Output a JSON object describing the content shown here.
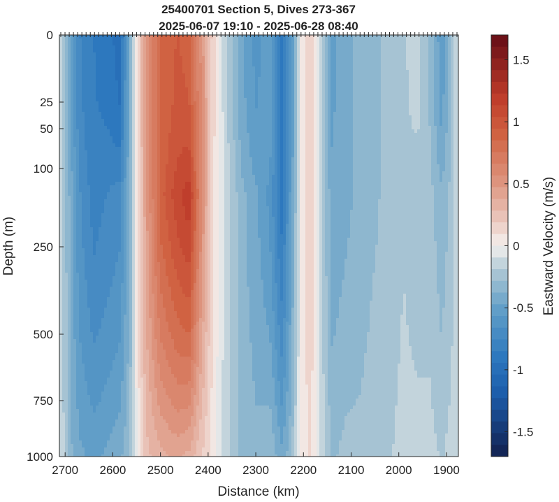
{
  "chart_data": {
    "type": "heatmap",
    "title": "25400701 Section 5, Dives 273-367",
    "subtitle": "2025-06-07 19:10 - 2025-06-28 08:40",
    "xlabel": "Distance (km)",
    "ylabel": "Depth (m)",
    "colorbar_label": "Eastward Velocity (m/s)",
    "x_reversed": true,
    "xlim": [
      2712,
      1875
    ],
    "x_ticks": [
      "2700",
      "2600",
      "2500",
      "2400",
      "2300",
      "2200",
      "2100",
      "2000",
      "1900"
    ],
    "x_tick_values": [
      2700,
      2600,
      2500,
      2400,
      2300,
      2200,
      2100,
      2000,
      1900
    ],
    "y_ticks": [
      "0",
      "25",
      "50",
      "100",
      "250",
      "500",
      "750",
      "1000"
    ],
    "y_tick_values": [
      0,
      25,
      50,
      100,
      250,
      500,
      750,
      1000
    ],
    "y_scale": "stretched-upper",
    "colorbar_ticks": [
      "1.5",
      "1",
      "0.5",
      "0",
      "-0.5",
      "-1",
      "-1.5"
    ],
    "colorbar_tick_values": [
      1.5,
      1,
      0.5,
      0,
      -0.5,
      -1,
      -1.5
    ],
    "clim": [
      -1.7,
      1.7
    ],
    "velocity_profiles": [
      {
        "distance": 2710,
        "surface": -0.1,
        "mid": -0.1,
        "deep": -0.1
      },
      {
        "distance": 2690,
        "surface": -0.45,
        "mid": -0.4,
        "deep": -0.35
      },
      {
        "distance": 2670,
        "surface": -0.75,
        "mid": -0.65,
        "deep": -0.45
      },
      {
        "distance": 2640,
        "surface": -0.85,
        "mid": -0.8,
        "deep": -0.5
      },
      {
        "distance": 2610,
        "surface": -0.9,
        "mid": -0.75,
        "deep": -0.45
      },
      {
        "distance": 2585,
        "surface": -1.0,
        "mid": -0.7,
        "deep": -0.4
      },
      {
        "distance": 2565,
        "surface": -0.4,
        "mid": -0.4,
        "deep": -0.3
      },
      {
        "distance": 2550,
        "surface": 0.05,
        "mid": 0.05,
        "deep": 0.0
      },
      {
        "distance": 2530,
        "surface": 0.5,
        "mid": 0.45,
        "deep": 0.25
      },
      {
        "distance": 2500,
        "surface": 0.85,
        "mid": 0.9,
        "deep": 0.35
      },
      {
        "distance": 2465,
        "surface": 0.95,
        "mid": 1.1,
        "deep": 0.4
      },
      {
        "distance": 2440,
        "surface": 0.9,
        "mid": 1.2,
        "deep": 0.35
      },
      {
        "distance": 2415,
        "surface": 0.55,
        "mid": 0.6,
        "deep": 0.2
      },
      {
        "distance": 2390,
        "surface": 0.15,
        "mid": 0.1,
        "deep": 0.05
      },
      {
        "distance": 2365,
        "surface": -0.15,
        "mid": -0.1,
        "deep": -0.15
      },
      {
        "distance": 2330,
        "surface": -0.45,
        "mid": -0.35,
        "deep": -0.3
      },
      {
        "distance": 2300,
        "surface": -0.6,
        "mid": -0.45,
        "deep": -0.35
      },
      {
        "distance": 2270,
        "surface": -0.5,
        "mid": -0.6,
        "deep": -0.3
      },
      {
        "distance": 2245,
        "surface": -0.9,
        "mid": -0.9,
        "deep": -0.45
      },
      {
        "distance": 2225,
        "surface": -0.6,
        "mid": -0.5,
        "deep": -0.3
      },
      {
        "distance": 2205,
        "surface": 0.0,
        "mid": 0.0,
        "deep": 0.05
      },
      {
        "distance": 2185,
        "surface": 0.2,
        "mid": 0.2,
        "deep": 0.1
      },
      {
        "distance": 2165,
        "surface": -0.15,
        "mid": -0.15,
        "deep": -0.1
      },
      {
        "distance": 2140,
        "surface": -0.5,
        "mid": -0.45,
        "deep": -0.3
      },
      {
        "distance": 2110,
        "surface": -0.4,
        "mid": -0.4,
        "deep": -0.25
      },
      {
        "distance": 2080,
        "surface": -0.35,
        "mid": -0.35,
        "deep": -0.25
      },
      {
        "distance": 2050,
        "surface": -0.3,
        "mid": -0.3,
        "deep": -0.2
      },
      {
        "distance": 2020,
        "surface": -0.25,
        "mid": -0.25,
        "deep": -0.2
      },
      {
        "distance": 1990,
        "surface": -0.2,
        "mid": -0.2,
        "deep": -0.15
      },
      {
        "distance": 1960,
        "surface": -0.15,
        "mid": -0.25,
        "deep": -0.15
      },
      {
        "distance": 1935,
        "surface": -0.3,
        "mid": -0.25,
        "deep": -0.15
      },
      {
        "distance": 1910,
        "surface": -0.55,
        "mid": -0.35,
        "deep": -0.2
      },
      {
        "distance": 1890,
        "surface": -0.3,
        "mid": -0.25,
        "deep": -0.15
      },
      {
        "distance": 1877,
        "surface": -0.1,
        "mid": -0.1,
        "deep": -0.1
      }
    ]
  }
}
